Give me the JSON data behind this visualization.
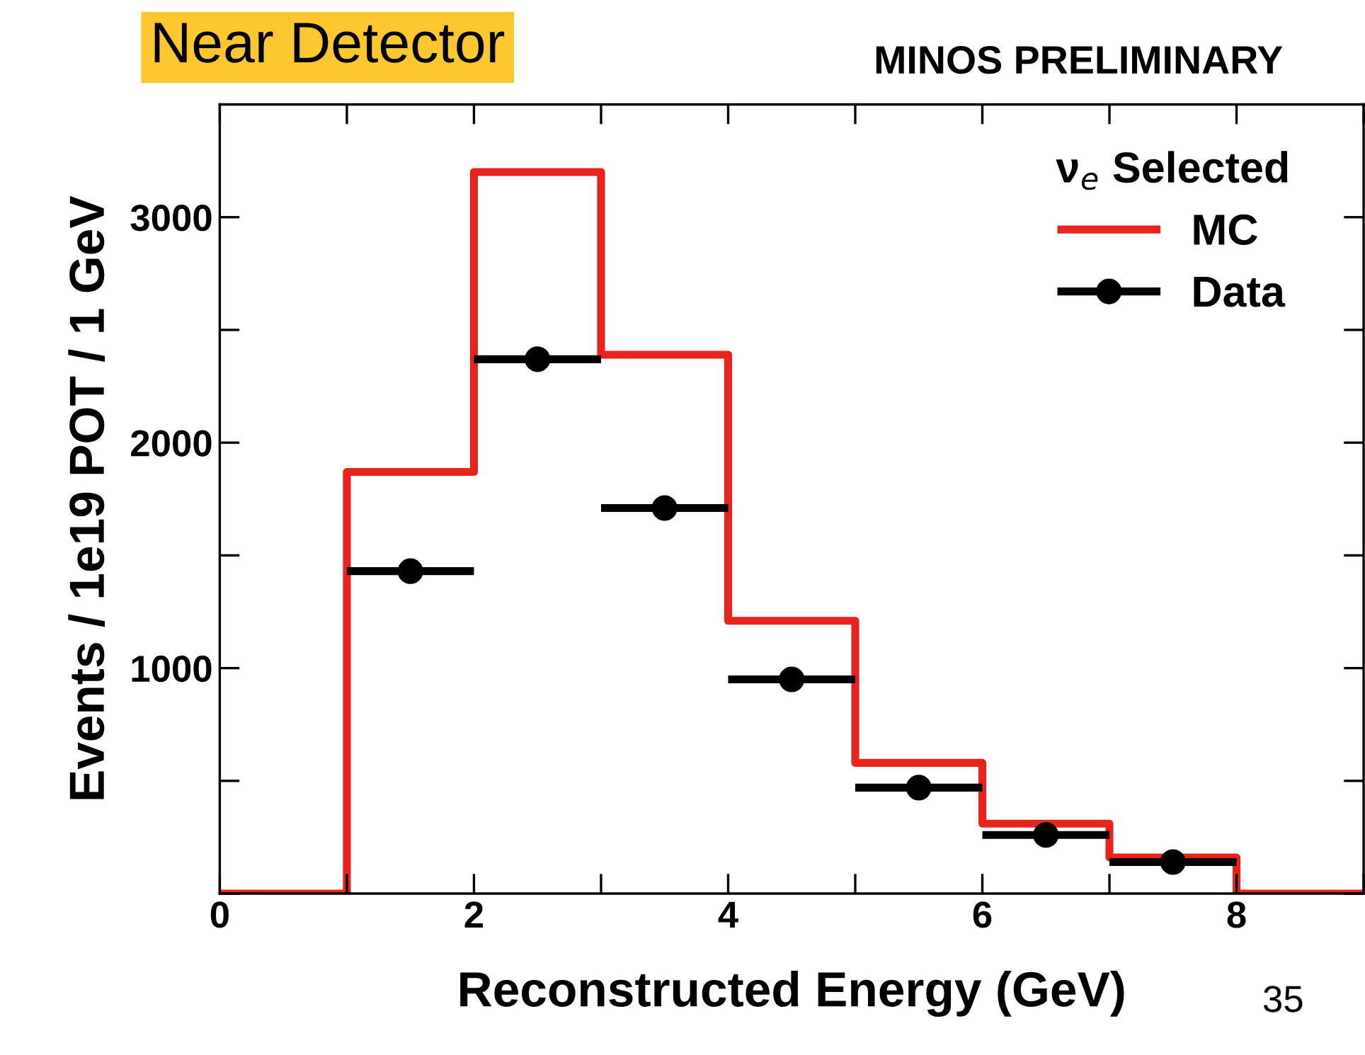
{
  "chart_data": {
    "type": "histogram",
    "xlabel": "Reconstructed Energy (GeV)",
    "ylabel": "Events / 1e19 POT / 1 GeV",
    "legend_title": "ν$_{e}$ Selected",
    "annotations": [
      "Near Detector",
      "MINOS PRELIMINARY",
      "35"
    ],
    "bins": [
      0,
      1,
      2,
      3,
      4,
      5,
      6,
      7,
      8,
      9
    ],
    "series": [
      {
        "name": "MC",
        "color": "#e8231b",
        "values": [
          0,
          1870,
          3200,
          2390,
          1210,
          580,
          310,
          160,
          0
        ]
      },
      {
        "name": "Data",
        "type": "scatter",
        "color": "#000000",
        "marker": "circle",
        "x": [
          1.5,
          2.5,
          3.5,
          4.5,
          5.5,
          6.5,
          7.5
        ],
        "values": [
          1430,
          2370,
          1710,
          950,
          470,
          260,
          140
        ],
        "xerrors": [
          0.5,
          0.5,
          0.5,
          0.5,
          0.5,
          0.5,
          0.5
        ]
      }
    ],
    "xlim": [
      0,
      9
    ],
    "ylim": [
      0,
      3500
    ],
    "xticks": [
      0,
      {
        "value": 1,
        "label": null
      },
      2,
      {
        "value": 3,
        "label": null
      },
      4,
      {
        "value": 5,
        "label": null
      },
      6,
      {
        "value": 7,
        "label": null
      },
      8,
      {
        "value": 9,
        "label": null
      }
    ],
    "yticks": [
      {
        "value": 0,
        "label": null
      },
      {
        "value": 500,
        "label": null
      },
      1000,
      {
        "value": 1500,
        "label": null
      },
      2000,
      {
        "value": 2500,
        "label": null
      },
      3000
    ],
    "grid": false,
    "legend": "top right"
  }
}
